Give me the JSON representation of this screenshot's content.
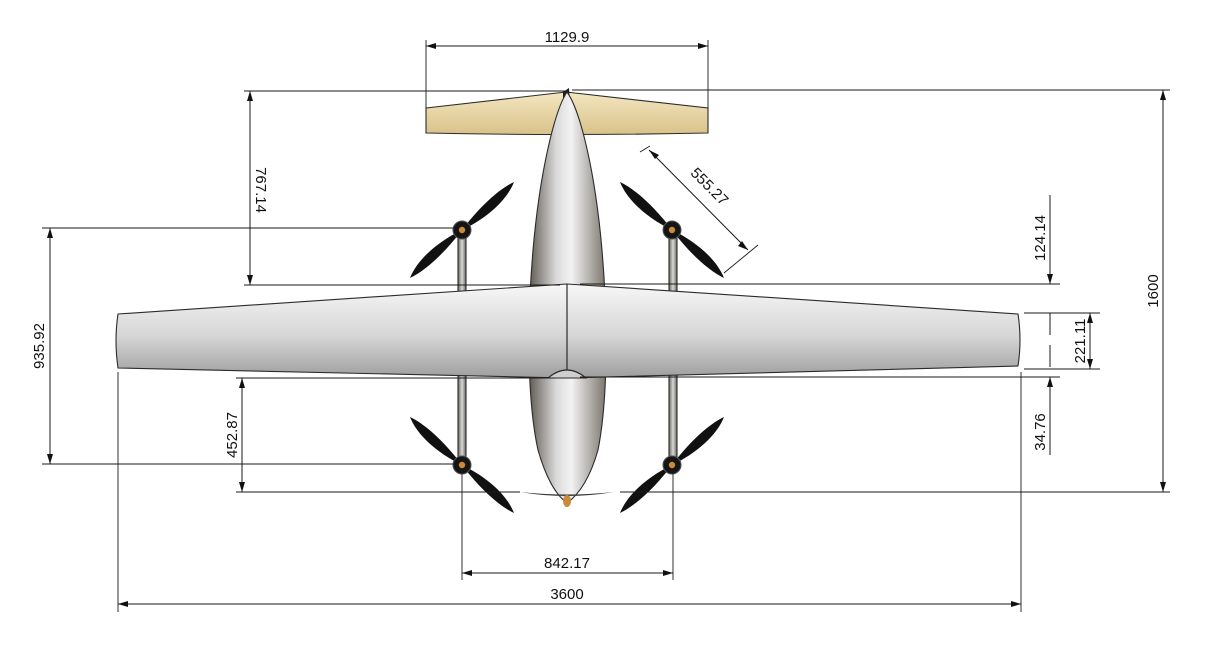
{
  "drawing": {
    "dimensions": {
      "tail_span": "1129.9",
      "tail_to_wing": "767.14",
      "prop_arm": "555.27",
      "front_prop_offset": "124.14",
      "overall_length": "1600",
      "prop_pair_spacing": "935.92",
      "wing_chord": "221.11",
      "rear_prop_offset": "452.87",
      "rear_prop_gap": "34.76",
      "boom_spacing": "842.17",
      "wingspan": "3600"
    },
    "colors": {
      "tail": "#e8d7a6",
      "body_light": "#f2f2f2",
      "body_dark": "#6f6a62",
      "prop": "#111111",
      "hub": "#c98a3a"
    }
  }
}
